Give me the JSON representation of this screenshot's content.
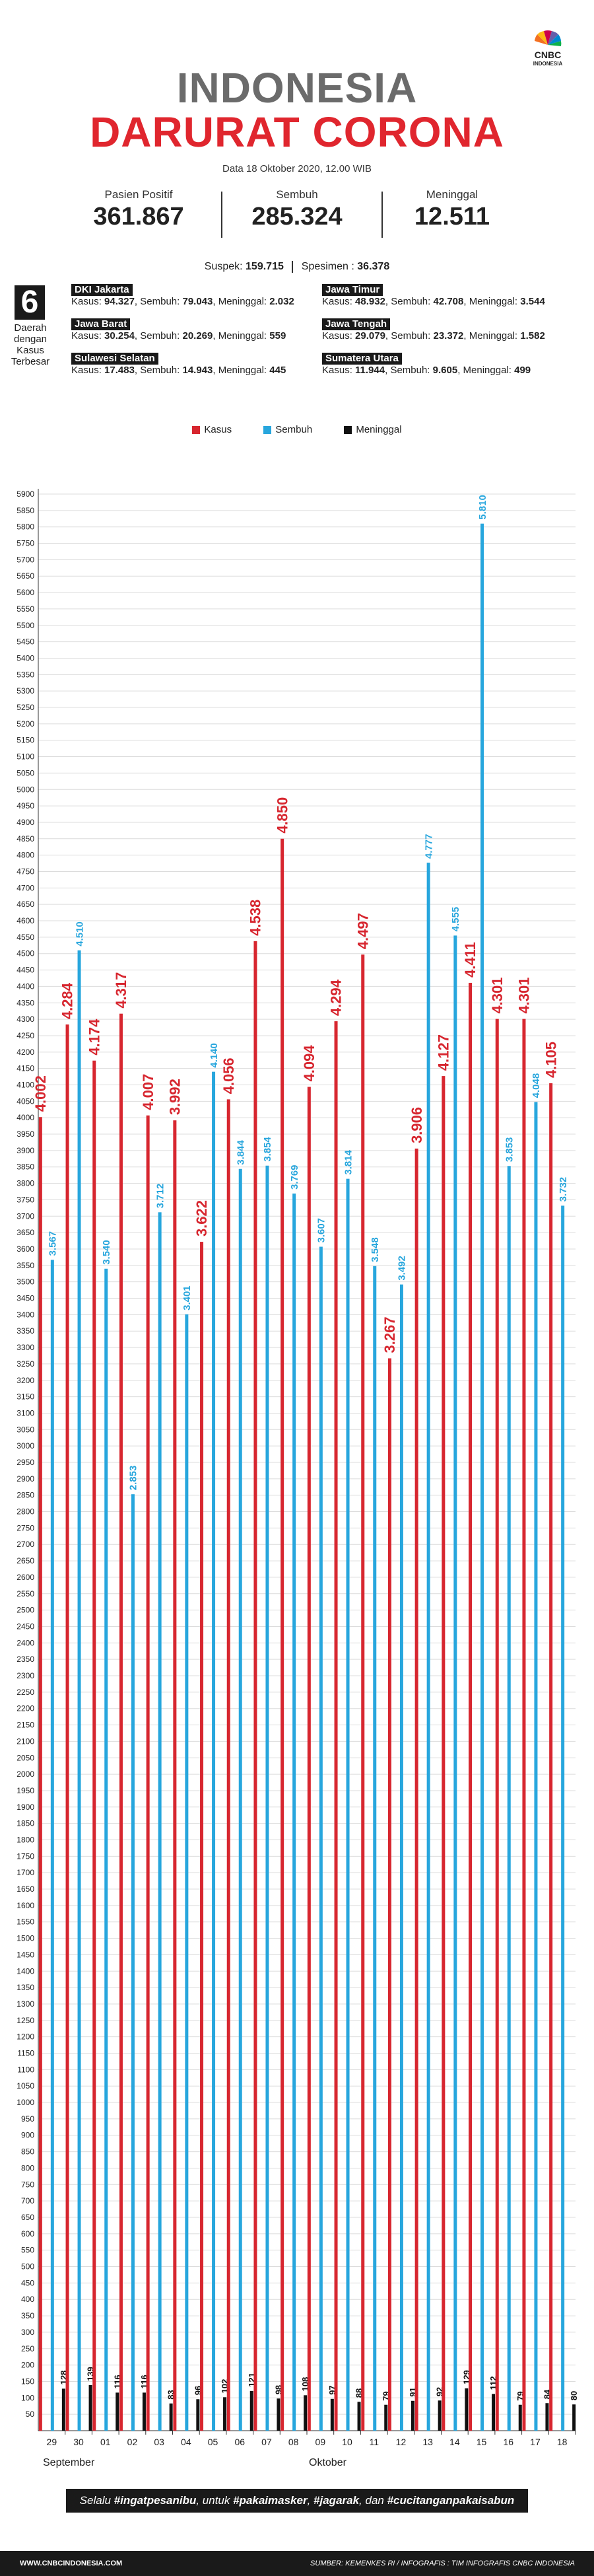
{
  "brand": {
    "logo_text": "CNBC",
    "logo_sub": "INDONESIA"
  },
  "header": {
    "title_line1": "INDONESIA",
    "title_line2": "DARURAT CORONA",
    "date": "Data 18 Oktober 2020, 12.00 WIB"
  },
  "stats": [
    {
      "label": "Pasien Positif",
      "value": "361.867"
    },
    {
      "label": "Sembuh",
      "value": "285.324"
    },
    {
      "label": "Meninggal",
      "value": "12.511"
    }
  ],
  "suspek": {
    "label": "Suspek:",
    "value": "159.715",
    "spesimen_label": "Spesimen :",
    "spesimen_value": "36.378"
  },
  "top_regions": {
    "count": "6",
    "caption": "Daerah dengan Kasus Terbesar",
    "items": [
      {
        "name": "DKI Jakarta",
        "kasus": "94.327",
        "sembuh": "79.043",
        "meninggal": "2.032"
      },
      {
        "name": "Jawa Barat",
        "kasus": "30.254",
        "sembuh": "20.269",
        "meninggal": "559"
      },
      {
        "name": "Sulawesi Selatan",
        "kasus": "17.483",
        "sembuh": "14.943",
        "meninggal": "445"
      },
      {
        "name": "Jawa Timur",
        "kasus": "48.932",
        "sembuh": "42.708",
        "meninggal": "3.544"
      },
      {
        "name": "Jawa Tengah",
        "kasus": "29.079",
        "sembuh": "23.372",
        "meninggal": "1.582"
      },
      {
        "name": "Sumatera Utara",
        "kasus": "11.944",
        "sembuh": "9.605",
        "meninggal": "499"
      }
    ],
    "labels": {
      "kasus": "Kasus:",
      "sembuh": "Sembuh:",
      "meninggal": "Meninggal:"
    }
  },
  "legend": [
    {
      "label": "Kasus",
      "color": "#d7262f"
    },
    {
      "label": "Sembuh",
      "color": "#27a6dd"
    },
    {
      "label": "Meninggal",
      "color": "#111111"
    }
  ],
  "chart_data": {
    "type": "bar",
    "categories": [
      "29",
      "30",
      "01",
      "02",
      "03",
      "04",
      "05",
      "06",
      "07",
      "08",
      "09",
      "10",
      "11",
      "12",
      "13",
      "14",
      "15",
      "16",
      "17",
      "18"
    ],
    "month_labels": [
      "September",
      "Oktober"
    ],
    "series": [
      {
        "name": "Kasus",
        "color": "#d7262f",
        "values": [
          4002,
          4284,
          4174,
          4317,
          4007,
          3992,
          3622,
          4056,
          4538,
          4850,
          4094,
          4294,
          4497,
          3267,
          3906,
          4127,
          4411,
          4301,
          4301,
          4105
        ],
        "labels": [
          "4.002",
          "4.284",
          "4.174",
          "4.317",
          "4.007",
          "3.992",
          "3.622",
          "4.056",
          "4.538",
          "4.850",
          "4.094",
          "4.294",
          "4.497",
          "3.267",
          "3.906",
          "4.127",
          "4.411",
          "4.301",
          "4.301",
          "4.105"
        ]
      },
      {
        "name": "Sembuh",
        "color": "#27a6dd",
        "values": [
          3567,
          4510,
          3540,
          2853,
          3712,
          3401,
          4140,
          3844,
          3854,
          3769,
          3607,
          3814,
          3548,
          3492,
          4777,
          4555,
          5810,
          3853,
          4048,
          3732
        ],
        "labels": [
          "3.567",
          "4.510",
          "3.540",
          "2.853",
          "3.712",
          "3.401",
          "4.140",
          "3.844",
          "3.854",
          "3.769",
          "3.607",
          "3.814",
          "3.548",
          "3.492",
          "4.777",
          "4.555",
          "5.810",
          "3.853",
          "4.048",
          "3.732"
        ]
      },
      {
        "name": "Meninggal",
        "color": "#111111",
        "values": [
          128,
          139,
          116,
          116,
          83,
          96,
          102,
          121,
          98,
          108,
          97,
          88,
          79,
          91,
          92,
          129,
          112,
          79,
          84,
          80
        ],
        "labels": [
          "128",
          "139",
          "116",
          "116",
          "83",
          "96",
          "102",
          "121",
          "98",
          "108",
          "97",
          "88",
          "79",
          "91",
          "92",
          "129",
          "112",
          "79",
          "84",
          "80"
        ]
      }
    ],
    "ylim": [
      0,
      5900
    ],
    "ytick_step": 50,
    "grid": true,
    "legend_position": "top-center"
  },
  "slogan": {
    "prefix": "Selalu ",
    "tag1": "#ingatpesanibu",
    "mid1": ", untuk ",
    "tag2": "#pakaimasker",
    "mid2": ", ",
    "tag3": "#jagarak",
    "mid3": ", dan ",
    "tag4": "#cucitanganpakaisabun"
  },
  "footer": {
    "website": "WWW.CNBCINDONESIA.COM",
    "source": "SUMBER: KEMENKES RI / INFOGRAFIS : TIM INFOGRAFIS CNBC INDONESIA"
  }
}
